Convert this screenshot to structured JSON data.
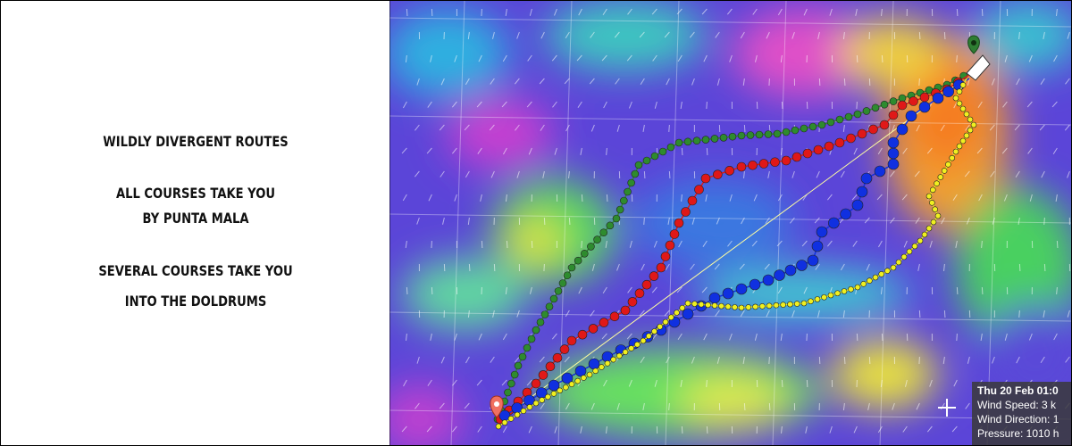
{
  "panel": {
    "lines": [
      "WILDLY DIVERGENT ROUTES",
      "ALL COURSES TAKE YOU",
      "BY PUNTA MALA",
      "SEVERAL COURSES TAKE YOU",
      "INTO THE DOLDRUMS"
    ]
  },
  "info_box": {
    "time": "Thu 20 Feb 01:0",
    "wind_speed": "Wind Speed: 3 k",
    "wind_direction": "Wind Direction: 1",
    "pressure": "Pressure: 1010 h"
  }
}
